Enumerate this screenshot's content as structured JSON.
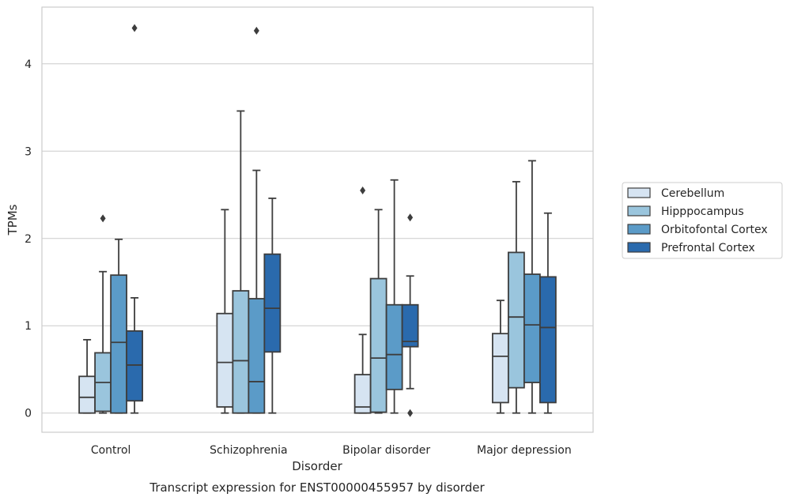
{
  "chart_data": {
    "type": "box",
    "caption": "Transcript expression for ENST00000455957 by disorder",
    "xlabel": "Disorder",
    "ylabel": "TPMs",
    "ylim": [
      -0.22,
      4.65
    ],
    "yticks": [
      0,
      1,
      2,
      3,
      4
    ],
    "grid": true,
    "legend_position": "right",
    "categories": [
      "Control",
      "Schizophrenia",
      "Bipolar disorder",
      "Major depression"
    ],
    "series": [
      {
        "name": "Cerebellum",
        "color": "#d6e4f2",
        "boxes": [
          {
            "whisker_low": 0.0,
            "q1": 0.0,
            "median": 0.18,
            "q3": 0.42,
            "whisker_high": 0.84,
            "outliers": []
          },
          {
            "whisker_low": 0.0,
            "q1": 0.07,
            "median": 0.58,
            "q3": 1.14,
            "whisker_high": 2.33,
            "outliers": []
          },
          {
            "whisker_low": 0.0,
            "q1": 0.0,
            "median": 0.07,
            "q3": 0.44,
            "whisker_high": 0.9,
            "outliers": [
              2.55
            ]
          },
          {
            "whisker_low": 0.0,
            "q1": 0.12,
            "median": 0.65,
            "q3": 0.91,
            "whisker_high": 1.29,
            "outliers": []
          }
        ]
      },
      {
        "name": "Hipppocampus",
        "color": "#9ac5dd",
        "boxes": [
          {
            "whisker_low": 0.0,
            "q1": 0.02,
            "median": 0.35,
            "q3": 0.69,
            "whisker_high": 1.62,
            "outliers": [
              2.23
            ]
          },
          {
            "whisker_low": 0.0,
            "q1": 0.0,
            "median": 0.6,
            "q3": 1.4,
            "whisker_high": 3.46,
            "outliers": []
          },
          {
            "whisker_low": 0.0,
            "q1": 0.01,
            "median": 0.63,
            "q3": 1.54,
            "whisker_high": 2.33,
            "outliers": []
          },
          {
            "whisker_low": 0.0,
            "q1": 0.29,
            "median": 1.1,
            "q3": 1.84,
            "whisker_high": 2.65,
            "outliers": []
          }
        ]
      },
      {
        "name": "Orbitofontal Cortex",
        "color": "#5b9bc8",
        "boxes": [
          {
            "whisker_low": 0.0,
            "q1": 0.0,
            "median": 0.81,
            "q3": 1.58,
            "whisker_high": 1.99,
            "outliers": []
          },
          {
            "whisker_low": 0.0,
            "q1": 0.0,
            "median": 0.36,
            "q3": 1.31,
            "whisker_high": 2.78,
            "outliers": [
              4.38
            ]
          },
          {
            "whisker_low": 0.0,
            "q1": 0.27,
            "median": 0.67,
            "q3": 1.24,
            "whisker_high": 2.67,
            "outliers": []
          },
          {
            "whisker_low": 0.0,
            "q1": 0.35,
            "median": 1.01,
            "q3": 1.59,
            "whisker_high": 2.89,
            "outliers": []
          }
        ]
      },
      {
        "name": "Prefrontal Cortex",
        "color": "#2a6aad",
        "boxes": [
          {
            "whisker_low": 0.0,
            "q1": 0.14,
            "median": 0.55,
            "q3": 0.94,
            "whisker_high": 1.32,
            "outliers": [
              4.41
            ]
          },
          {
            "whisker_low": 0.0,
            "q1": 0.7,
            "median": 1.2,
            "q3": 1.82,
            "whisker_high": 2.46,
            "outliers": []
          },
          {
            "whisker_low": 0.28,
            "q1": 0.76,
            "median": 0.82,
            "q3": 1.24,
            "whisker_high": 1.57,
            "outliers": [
              2.24,
              0.0
            ]
          },
          {
            "whisker_low": 0.0,
            "q1": 0.12,
            "median": 0.98,
            "q3": 1.56,
            "whisker_high": 2.29,
            "outliers": []
          }
        ]
      }
    ]
  }
}
